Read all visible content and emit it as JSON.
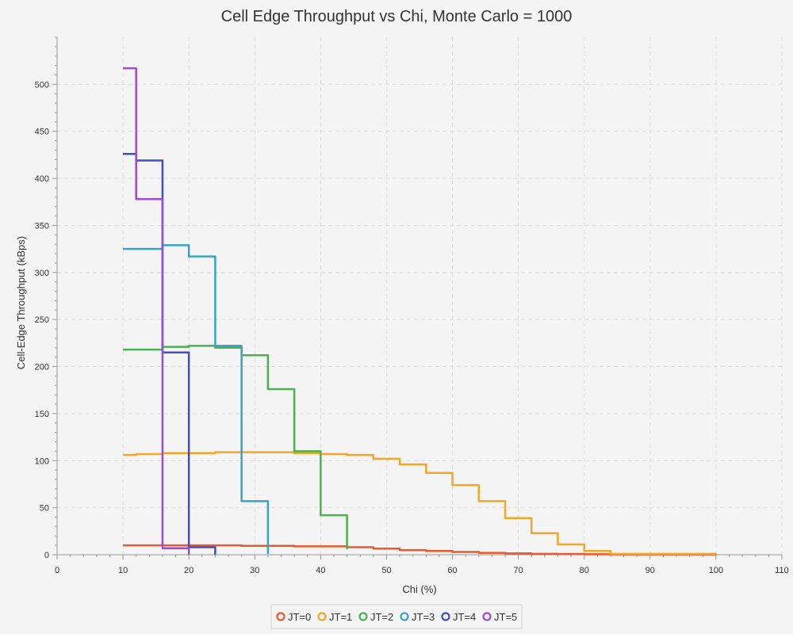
{
  "chart_data": {
    "type": "line",
    "title": "Cell Edge Throughput vs Chi, Monte Carlo = 1000",
    "xlabel": "Chi (%)",
    "ylabel": "Cell-Edge Throughput (kBps)",
    "xlim": [
      0,
      110
    ],
    "ylim": [
      0,
      550
    ],
    "x_ticks": [
      0,
      10,
      20,
      30,
      40,
      50,
      60,
      70,
      80,
      90,
      100,
      110
    ],
    "y_ticks": [
      0,
      50,
      100,
      150,
      200,
      250,
      300,
      350,
      400,
      450,
      500
    ],
    "grid": true,
    "legend_position": "bottom",
    "series": [
      {
        "name": "JT=0",
        "color": "#e8592e",
        "x": [
          10,
          20,
          28,
          36,
          44,
          48,
          52,
          56,
          60,
          64,
          68,
          72,
          76,
          80,
          84,
          100
        ],
        "y": [
          10,
          10,
          9.5,
          9,
          8,
          6.5,
          5,
          4,
          3,
          2,
          1.5,
          1,
          0.8,
          0.5,
          0.3,
          0.2
        ]
      },
      {
        "name": "JT=1",
        "color": "#f5a623",
        "x": [
          10,
          12,
          16,
          20,
          24,
          28,
          32,
          36,
          40,
          44,
          48,
          52,
          56,
          60,
          64,
          68,
          72,
          76,
          80,
          84,
          100
        ],
        "y": [
          106,
          107,
          108,
          108,
          109,
          109,
          109,
          108,
          107,
          106,
          102,
          96,
          87,
          74,
          57,
          39,
          23,
          11,
          4,
          1,
          0.5
        ]
      },
      {
        "name": "JT=2",
        "color": "#4caf50",
        "x": [
          10,
          16,
          20,
          24,
          28,
          32,
          36,
          40,
          44
        ],
        "y": [
          218,
          221,
          222,
          220,
          212,
          176,
          110,
          42,
          6
        ]
      },
      {
        "name": "JT=3",
        "color": "#38a3c6",
        "x": [
          10,
          16,
          20,
          24,
          28,
          32
        ],
        "y": [
          325,
          329,
          317,
          222,
          57,
          1
        ]
      },
      {
        "name": "JT=4",
        "color": "#3f4fc2",
        "x": [
          10,
          12,
          16,
          20,
          24
        ],
        "y": [
          426,
          419,
          215,
          8,
          0
        ]
      },
      {
        "name": "JT=5",
        "color": "#9b4bd1",
        "x": [
          10,
          12,
          16,
          20
        ],
        "y": [
          517,
          378,
          7,
          0
        ]
      }
    ]
  }
}
